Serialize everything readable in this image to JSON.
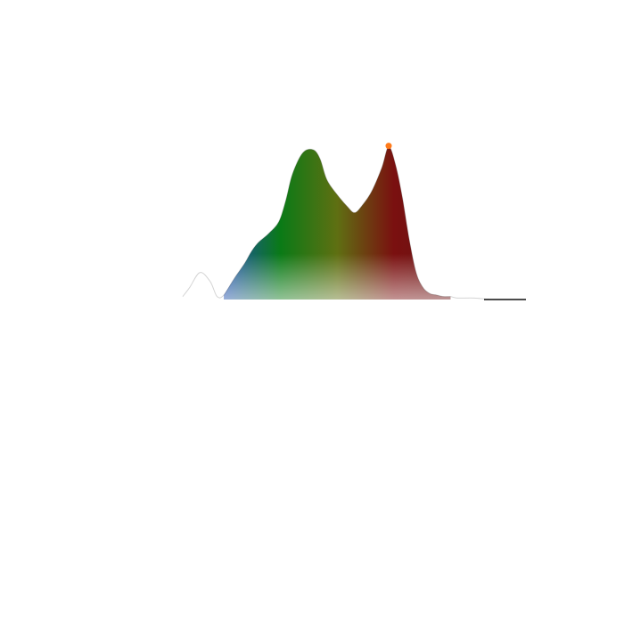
{
  "chart_data": {
    "type": "area",
    "title": "",
    "xlabel": "",
    "ylabel": "",
    "x_domain": [
      0,
      100
    ],
    "y_domain": [
      0,
      1
    ],
    "grid": true,
    "legend": "none",
    "gradient_colors": [
      "#1f4fb0",
      "#0a7a16",
      "#5f6f12",
      "#7a1010",
      "#6a1414"
    ],
    "peak_marker_color": "#ff7a1a",
    "x": [
      0,
      2,
      5,
      8,
      10,
      12,
      15,
      18,
      20,
      22,
      25,
      28,
      30,
      32,
      35,
      38,
      40,
      42,
      45,
      48,
      50,
      52,
      55,
      58,
      60,
      62,
      64,
      66,
      68,
      70,
      72,
      74,
      76,
      78,
      80,
      85,
      90,
      95,
      100
    ],
    "y": [
      0.02,
      0.08,
      0.18,
      0.12,
      0.02,
      0.03,
      0.14,
      0.24,
      0.32,
      0.38,
      0.44,
      0.52,
      0.66,
      0.84,
      0.98,
      1.0,
      0.94,
      0.8,
      0.7,
      0.62,
      0.58,
      0.62,
      0.72,
      0.88,
      1.02,
      0.9,
      0.68,
      0.4,
      0.18,
      0.08,
      0.04,
      0.03,
      0.02,
      0.02,
      0.01,
      0.01,
      0.0,
      0.0,
      0.0
    ]
  }
}
